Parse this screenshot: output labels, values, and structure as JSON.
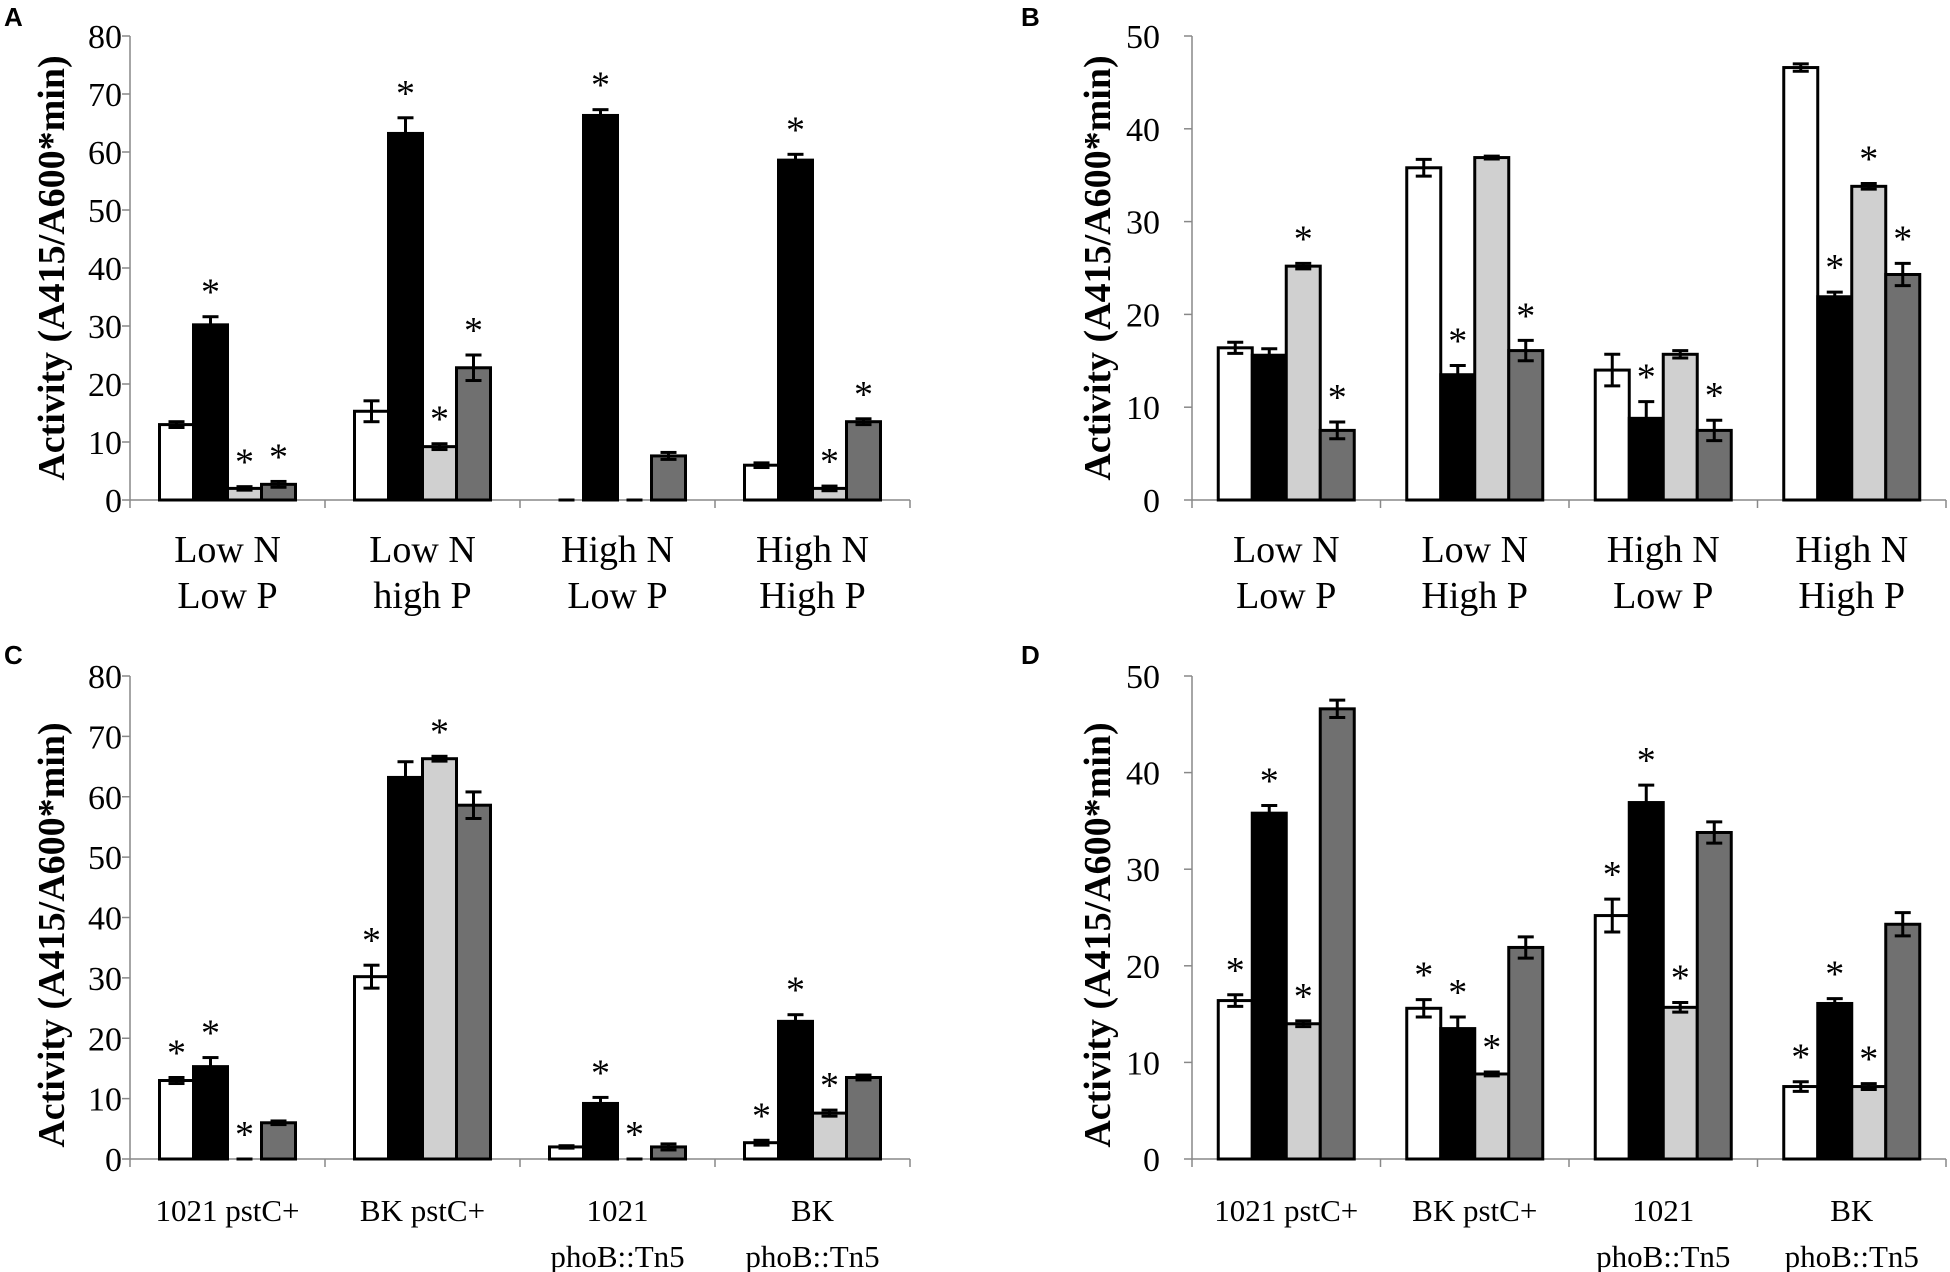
{
  "chart_data": [
    {
      "panel": "A",
      "type": "bar",
      "ylabel": "Activity (A415/A600*min)",
      "ylim": [
        0,
        80
      ],
      "yticks": [
        0,
        10,
        20,
        30,
        40,
        50,
        60,
        70,
        80
      ],
      "categories": [
        [
          "Low N",
          "Low P"
        ],
        [
          "Low N",
          "high P"
        ],
        [
          "High N",
          "Low P"
        ],
        [
          "High N",
          "High P"
        ]
      ],
      "series": [
        {
          "color": "#ffffff",
          "values": [
            13,
            15.3,
            0,
            6
          ],
          "errors": [
            0.5,
            1.8,
            0,
            0.4
          ],
          "stars": [
            false,
            false,
            false,
            false
          ]
        },
        {
          "color": "#000000",
          "values": [
            30.2,
            63.2,
            66.3,
            58.6
          ],
          "errors": [
            1.4,
            2.7,
            1.0,
            1.0
          ],
          "stars": [
            true,
            true,
            true,
            true
          ]
        },
        {
          "color": "#d0d0d0",
          "values": [
            2,
            9.2,
            0,
            2
          ],
          "errors": [
            0.3,
            0.5,
            0,
            0.4
          ],
          "stars": [
            true,
            true,
            false,
            true
          ]
        },
        {
          "color": "#707070",
          "values": [
            2.7,
            22.8,
            7.6,
            13.5
          ],
          "errors": [
            0.5,
            2.2,
            0.6,
            0.5
          ],
          "stars": [
            true,
            true,
            false,
            true
          ]
        }
      ]
    },
    {
      "panel": "B",
      "type": "bar",
      "ylabel": "Activity (A415/A600*min)",
      "ylim": [
        0,
        50
      ],
      "yticks": [
        0,
        10,
        20,
        30,
        40,
        50
      ],
      "categories": [
        [
          "Low N",
          "Low P"
        ],
        [
          "Low N",
          "High P"
        ],
        [
          "High N",
          "Low P"
        ],
        [
          "High N",
          "High P"
        ]
      ],
      "series": [
        {
          "color": "#ffffff",
          "values": [
            16.4,
            35.8,
            14,
            46.6
          ],
          "errors": [
            0.6,
            0.9,
            1.7,
            0.4
          ],
          "stars": [
            false,
            false,
            false,
            false
          ]
        },
        {
          "color": "#000000",
          "values": [
            15.6,
            13.5,
            8.8,
            21.9
          ],
          "errors": [
            0.7,
            1.0,
            1.8,
            0.5
          ],
          "stars": [
            false,
            true,
            true,
            true
          ]
        },
        {
          "color": "#d0d0d0",
          "values": [
            25.2,
            36.9,
            15.7,
            33.8
          ],
          "errors": [
            0.3,
            0.15,
            0.4,
            0.3
          ],
          "stars": [
            true,
            false,
            false,
            true
          ]
        },
        {
          "color": "#707070",
          "values": [
            7.5,
            16.1,
            7.5,
            24.3
          ],
          "errors": [
            0.9,
            1.1,
            1.1,
            1.2
          ],
          "stars": [
            true,
            true,
            true,
            true
          ]
        }
      ]
    },
    {
      "panel": "C",
      "type": "bar",
      "ylabel": "Activity (A415/A600*min)",
      "ylim": [
        0,
        80
      ],
      "yticks": [
        0,
        10,
        20,
        30,
        40,
        50,
        60,
        70,
        80
      ],
      "categories": [
        [
          "1021 pstC+"
        ],
        [
          "BK pstC+"
        ],
        [
          "1021",
          "phoB::Tn5"
        ],
        [
          "BK",
          "phoB::Tn5"
        ]
      ],
      "series": [
        {
          "color": "#ffffff",
          "values": [
            13,
            30.2,
            2,
            2.7
          ],
          "errors": [
            0.5,
            1.9,
            0.2,
            0.4
          ],
          "stars": [
            true,
            true,
            false,
            true
          ]
        },
        {
          "color": "#000000",
          "values": [
            15.3,
            63.2,
            9.2,
            22.8
          ],
          "errors": [
            1.5,
            2.6,
            1.0,
            1.1
          ],
          "stars": [
            true,
            false,
            true,
            true
          ]
        },
        {
          "color": "#d0d0d0",
          "values": [
            0,
            66.3,
            0,
            7.6
          ],
          "errors": [
            0,
            0.4,
            0,
            0.5
          ],
          "stars": [
            true,
            true,
            true,
            true
          ]
        },
        {
          "color": "#707070",
          "values": [
            6,
            58.6,
            2,
            13.5
          ],
          "errors": [
            0.3,
            2.2,
            0.5,
            0.4
          ],
          "stars": [
            false,
            false,
            false,
            false
          ]
        }
      ]
    },
    {
      "panel": "D",
      "type": "bar",
      "ylabel": "Activity (A415/A600*min)",
      "ylim": [
        0,
        50
      ],
      "yticks": [
        0,
        10,
        20,
        30,
        40,
        50
      ],
      "categories": [
        [
          "1021 pstC+"
        ],
        [
          "BK pstC+"
        ],
        [
          "1021",
          "phoB::Tn5"
        ],
        [
          "BK",
          "phoB::Tn5"
        ]
      ],
      "series": [
        {
          "color": "#ffffff",
          "values": [
            16.4,
            15.6,
            25.2,
            7.5
          ],
          "errors": [
            0.6,
            0.9,
            1.7,
            0.5
          ],
          "stars": [
            true,
            true,
            true,
            true
          ]
        },
        {
          "color": "#000000",
          "values": [
            35.8,
            13.5,
            36.9,
            16.1
          ],
          "errors": [
            0.8,
            1.2,
            1.8,
            0.5
          ],
          "stars": [
            true,
            true,
            true,
            true
          ]
        },
        {
          "color": "#d0d0d0",
          "values": [
            14,
            8.8,
            15.7,
            7.5
          ],
          "errors": [
            0.3,
            0.2,
            0.5,
            0.3
          ],
          "stars": [
            true,
            true,
            true,
            true
          ]
        },
        {
          "color": "#707070",
          "values": [
            46.6,
            21.9,
            33.8,
            24.3
          ],
          "errors": [
            0.9,
            1.1,
            1.1,
            1.2
          ],
          "stars": [
            false,
            false,
            false,
            false
          ]
        }
      ]
    }
  ],
  "significance_marker": "*"
}
